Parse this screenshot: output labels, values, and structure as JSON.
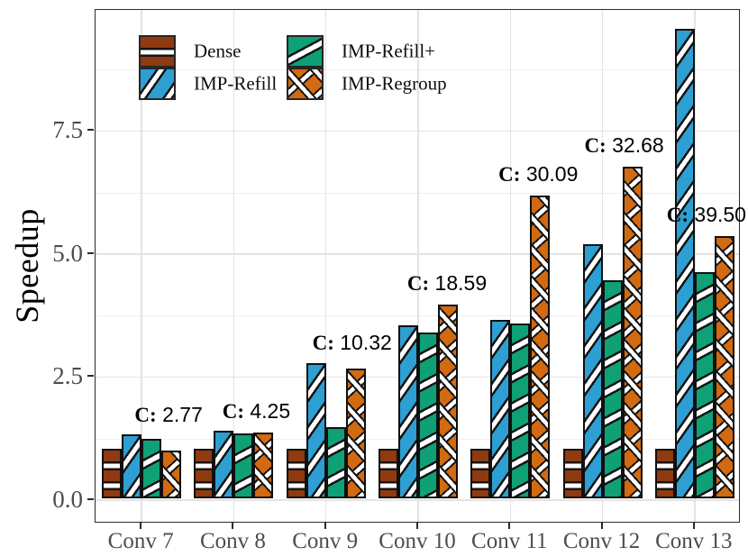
{
  "figure_title": "",
  "colors": {
    "dense": "#8F3A0F",
    "refill": "#2E9FD2",
    "refillplus": "#0FA076",
    "regroup": "#D26A12",
    "grid_major": "#e3e3e3",
    "grid_minor": "#efefef",
    "axis_text": "#4d4d4d",
    "panel_border": "#2b2b2b",
    "annotation_text": "#000000"
  },
  "y_axis": {
    "title": "Speedup",
    "tick_labels": [
      "0.0",
      "2.5",
      "5.0",
      "7.5"
    ]
  },
  "x_axis": {
    "tick_labels": [
      "Conv 7",
      "Conv 8",
      "Conv 9",
      "Conv 10",
      "Conv 11",
      "Conv 12",
      "Conv 13"
    ]
  },
  "legend": {
    "items": [
      {
        "label": "Dense",
        "key": "dense",
        "column": 0,
        "row": 0
      },
      {
        "label": "IMP-Refill",
        "key": "refill",
        "column": 0,
        "row": 1
      },
      {
        "label": "IMP-Refill+",
        "key": "refillplus",
        "column": 1,
        "row": 0
      },
      {
        "label": "IMP-Regroup",
        "key": "regroup",
        "column": 1,
        "row": 1
      }
    ]
  },
  "chart_data": {
    "type": "bar",
    "title": "",
    "xlabel": "",
    "ylabel": "Speedup",
    "ylim": [
      -0.47,
      9.96
    ],
    "y_ticks": [
      0,
      2.5,
      5,
      7.5
    ],
    "y_minor_ticks": [
      1.25,
      3.75,
      6.25,
      8.75
    ],
    "grid": "horizontal major+minor, vertical major at group centers",
    "legend_position": "top-left inside panel, two columns",
    "categories": [
      "Conv 7",
      "Conv 8",
      "Conv 9",
      "Conv 10",
      "Conv 11",
      "Conv 12",
      "Conv 13"
    ],
    "series": [
      {
        "name": "Dense",
        "key": "dense",
        "color": "#8F3A0F",
        "pattern": "horizontal-white-stripes",
        "values": [
          1.0,
          1.0,
          1.0,
          1.0,
          1.0,
          1.0,
          1.0
        ]
      },
      {
        "name": "IMP-Refill",
        "key": "refill",
        "color": "#2E9FD2",
        "pattern": "diagonal-white-stripes",
        "values": [
          1.3,
          1.37,
          2.75,
          3.52,
          3.62,
          5.16,
          9.54
        ]
      },
      {
        "name": "IMP-Refill+",
        "key": "refillplus",
        "color": "#0FA076",
        "pattern": "steep-diagonal-white-stripes",
        "values": [
          1.21,
          1.32,
          1.44,
          3.36,
          3.55,
          4.43,
          4.6
        ]
      },
      {
        "name": "IMP-Regroup",
        "key": "regroup",
        "color": "#D26A12",
        "pattern": "crosshatch-white-stripes",
        "values": [
          0.97,
          1.34,
          2.64,
          3.94,
          6.15,
          6.74,
          5.33
        ]
      }
    ],
    "annotations": [
      {
        "text": "C: 2.77",
        "prefix": "C:",
        "number": "2.77",
        "category": "Conv 7",
        "anchor_value": 1.45,
        "dx": 30
      },
      {
        "text": "C: 4.25",
        "prefix": "C:",
        "number": "4.25",
        "category": "Conv 8",
        "anchor_value": 1.52,
        "dx": 25
      },
      {
        "text": "C: 10.32",
        "prefix": "C:",
        "number": "10.32",
        "category": "Conv 9",
        "anchor_value": 2.92,
        "dx": 29
      },
      {
        "text": "C: 18.59",
        "prefix": "C:",
        "number": "18.59",
        "category": "Conv 10",
        "anchor_value": 4.12,
        "dx": 32
      },
      {
        "text": "C: 30.09",
        "prefix": "C:",
        "number": "30.09",
        "category": "Conv 11",
        "anchor_value": 6.33,
        "dx": 31
      },
      {
        "text": "C: 32.68",
        "prefix": "C:",
        "number": "32.68",
        "category": "Conv 12",
        "anchor_value": 6.92,
        "dx": 24
      },
      {
        "text": "C: 39.50",
        "prefix": "C:",
        "number": "39.50",
        "category": "Conv 13",
        "anchor_value": 5.52,
        "dx": 13
      }
    ]
  }
}
